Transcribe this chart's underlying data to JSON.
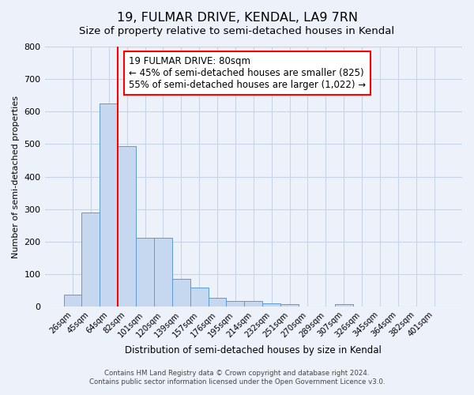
{
  "title": "19, FULMAR DRIVE, KENDAL, LA9 7RN",
  "subtitle": "Size of property relative to semi-detached houses in Kendal",
  "xlabel": "Distribution of semi-detached houses by size in Kendal",
  "ylabel": "Number of semi-detached properties",
  "bar_labels": [
    "26sqm",
    "45sqm",
    "64sqm",
    "82sqm",
    "101sqm",
    "120sqm",
    "139sqm",
    "157sqm",
    "176sqm",
    "195sqm",
    "214sqm",
    "232sqm",
    "251sqm",
    "270sqm",
    "289sqm",
    "307sqm",
    "326sqm",
    "345sqm",
    "364sqm",
    "382sqm",
    "401sqm"
  ],
  "bar_values": [
    38,
    290,
    625,
    495,
    212,
    212,
    85,
    58,
    28,
    18,
    18,
    10,
    8,
    0,
    0,
    8,
    0,
    0,
    0,
    0,
    0
  ],
  "bar_color": "#c5d8f0",
  "bar_edge_color": "#5b9bd5",
  "vline_index": 3,
  "vline_color": "red",
  "annotation_text": "19 FULMAR DRIVE: 80sqm\n← 45% of semi-detached houses are smaller (825)\n55% of semi-detached houses are larger (1,022) →",
  "annotation_box_color": "white",
  "annotation_box_edge_color": "red",
  "annotation_fontsize": 8.5,
  "ylim": [
    0,
    800
  ],
  "yticks": [
    0,
    100,
    200,
    300,
    400,
    500,
    600,
    700,
    800
  ],
  "footer1": "Contains HM Land Registry data © Crown copyright and database right 2024.",
  "footer2": "Contains public sector information licensed under the Open Government Licence v3.0.",
  "bg_color": "#edf2fa",
  "title_fontsize": 11.5,
  "subtitle_fontsize": 9.5,
  "grid_color": "#c8d4e8"
}
